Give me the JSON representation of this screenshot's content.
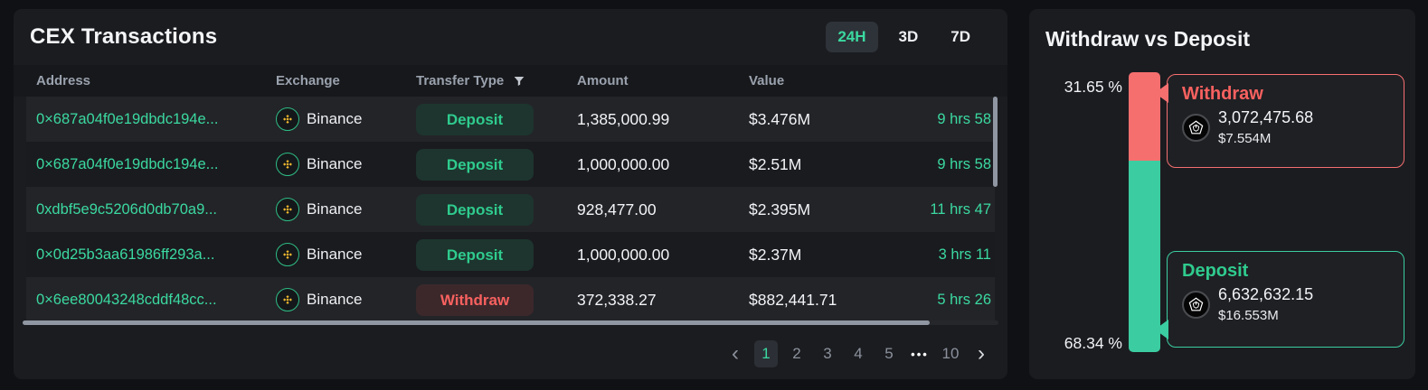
{
  "left_panel": {
    "title": "CEX Transactions",
    "timeframes": {
      "h24": "24H",
      "d3": "3D",
      "d7": "7D",
      "active": "24H"
    },
    "table": {
      "columns": [
        "Address",
        "Exchange",
        "Transfer Type",
        "Amount",
        "Value"
      ],
      "rows": [
        {
          "address": "0×687a04f0e19dbdc194e...",
          "exchange": "Binance",
          "transfer_type": "Deposit",
          "amount": "1,385,000.99",
          "value": "$3.476M",
          "time": "9 hrs 58"
        },
        {
          "address": "0×687a04f0e19dbdc194e...",
          "exchange": "Binance",
          "transfer_type": "Deposit",
          "amount": "1,000,000.00",
          "value": "$2.51M",
          "time": "9 hrs 58"
        },
        {
          "address": "0xdbf5e9c5206d0db70a9...",
          "exchange": "Binance",
          "transfer_type": "Deposit",
          "amount": "928,477.00",
          "value": "$2.395M",
          "time": "11 hrs 47"
        },
        {
          "address": "0×0d25b3aa61986ff293a...",
          "exchange": "Binance",
          "transfer_type": "Deposit",
          "amount": "1,000,000.00",
          "value": "$2.37M",
          "time": "3 hrs 11"
        },
        {
          "address": "0×6ee80043248cddf48cc...",
          "exchange": "Binance",
          "transfer_type": "Withdraw",
          "amount": "372,338.27",
          "value": "$882,441.71",
          "time": "5 hrs 26"
        }
      ]
    },
    "pagination": {
      "prev": "‹",
      "next": "›",
      "pages": [
        "1",
        "2",
        "3",
        "4",
        "5"
      ],
      "dots": "•••",
      "last": "10",
      "active": "1"
    }
  },
  "right_panel": {
    "title": "Withdraw vs Deposit",
    "withdraw": {
      "percent_label": "31.65 %",
      "name": "Withdraw",
      "amount": "3,072,475.68",
      "usd": "$7.554M"
    },
    "deposit": {
      "percent_label": "68.34 %",
      "name": "Deposit",
      "amount": "6,632,632.15",
      "usd": "$16.553M"
    }
  },
  "chart_data": {
    "type": "bar",
    "subtype": "stacked-percentage-column",
    "title": "Withdraw vs Deposit",
    "legend_position": "right-callouts",
    "segments": [
      {
        "label": "Withdraw",
        "percent": 31.65,
        "amount": 3072475.68,
        "usd_value_label": "$7.554M",
        "color": "#f56f6f"
      },
      {
        "label": "Deposit",
        "percent": 68.34,
        "amount": 6632632.15,
        "usd_value_label": "$16.553M",
        "color": "#3bcda1"
      }
    ],
    "ylim": [
      0,
      100
    ]
  },
  "colors": {
    "accent_green": "#3bd9a0",
    "accent_red": "#f8615f",
    "bar_red": "#f56f6f",
    "bar_green": "#3bcda1",
    "binance_yellow": "#f3ba2f"
  },
  "icons": {
    "filter": "funnel-icon",
    "exchange": "binance-icon",
    "token": "token-coin-icon"
  }
}
